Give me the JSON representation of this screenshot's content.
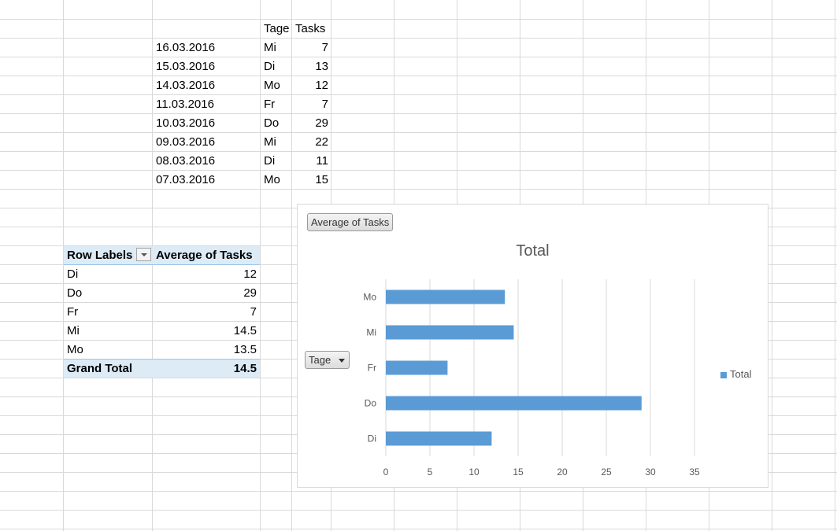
{
  "table": {
    "headers": {
      "tage": "Tage",
      "tasks": "Tasks"
    },
    "rows": [
      {
        "date": "16.03.2016",
        "tage": "Mi",
        "tasks": "7"
      },
      {
        "date": "15.03.2016",
        "tage": "Di",
        "tasks": "13"
      },
      {
        "date": "14.03.2016",
        "tage": "Mo",
        "tasks": "12"
      },
      {
        "date": "11.03.2016",
        "tage": "Fr",
        "tasks": "7"
      },
      {
        "date": "10.03.2016",
        "tage": "Do",
        "tasks": "29"
      },
      {
        "date": "09.03.2016",
        "tage": "Mi",
        "tasks": "22"
      },
      {
        "date": "08.03.2016",
        "tage": "Di",
        "tasks": "11"
      },
      {
        "date": "07.03.2016",
        "tage": "Mo",
        "tasks": "15"
      }
    ]
  },
  "pivot": {
    "row_labels_header": "Row Labels",
    "value_header": "Average of Tasks",
    "rows": [
      {
        "label": "Di",
        "value": "12"
      },
      {
        "label": "Do",
        "value": "29"
      },
      {
        "label": "Fr",
        "value": "7"
      },
      {
        "label": "Mi",
        "value": "14.5"
      },
      {
        "label": "Mo",
        "value": "13.5"
      }
    ],
    "grand_total_label": "Grand Total",
    "grand_total_value": "14.5"
  },
  "chart_controls": {
    "value_field_button": "Average of Tasks",
    "axis_field_button": "Tage"
  },
  "colors": {
    "bar": "#5b9bd5",
    "pivot_fill": "#ddebf7",
    "grid": "#d9d9d9"
  },
  "chart_data": {
    "type": "bar",
    "orientation": "horizontal",
    "title": "Total",
    "categories": [
      "Di",
      "Do",
      "Fr",
      "Mi",
      "Mo"
    ],
    "series": [
      {
        "name": "Total",
        "values": [
          12,
          29,
          7,
          14.5,
          13.5
        ]
      }
    ],
    "xlim": [
      0,
      35
    ],
    "xticks": [
      0,
      5,
      10,
      15,
      20,
      25,
      30,
      35
    ],
    "grid": true,
    "legend": "right"
  }
}
